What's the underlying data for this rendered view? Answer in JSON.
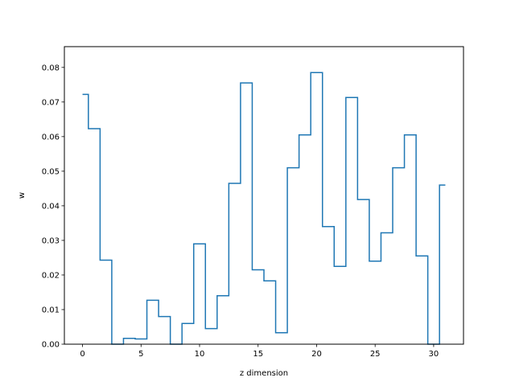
{
  "chart_data": {
    "type": "line",
    "drawstyle": "steps-mid",
    "title": "",
    "xlabel": "z dimension",
    "ylabel": "w",
    "xlim": [
      -1.55,
      32.55
    ],
    "ylim": [
      0,
      0.086
    ],
    "x_ticks": [
      0,
      5,
      10,
      15,
      20,
      25,
      30
    ],
    "y_ticks": [
      0.0,
      0.01,
      0.02,
      0.03,
      0.04,
      0.05,
      0.06,
      0.07,
      0.08
    ],
    "y_tick_labels": [
      "0.00",
      "0.01",
      "0.02",
      "0.03",
      "0.04",
      "0.05",
      "0.06",
      "0.07",
      "0.08"
    ],
    "grid": false,
    "line_color": "#1f77b4",
    "series": [
      {
        "x": [
          0,
          1,
          2,
          3,
          4,
          5,
          6,
          7,
          8,
          9,
          10,
          11,
          12,
          13,
          14,
          15,
          16,
          17,
          18,
          19,
          20,
          21,
          22,
          23,
          24,
          25,
          26,
          27,
          28,
          29,
          30,
          31
        ],
        "values": [
          0.0722,
          0.0623,
          0.0243,
          0.0,
          0.0017,
          0.0015,
          0.0127,
          0.008,
          0.0,
          0.006,
          0.029,
          0.0045,
          0.014,
          0.0465,
          0.0755,
          0.0215,
          0.0183,
          0.0033,
          0.051,
          0.0605,
          0.0785,
          0.034,
          0.0225,
          0.0713,
          0.0418,
          0.024,
          0.0322,
          0.051,
          0.0605,
          0.0255,
          0.0,
          0.046
        ]
      }
    ]
  }
}
